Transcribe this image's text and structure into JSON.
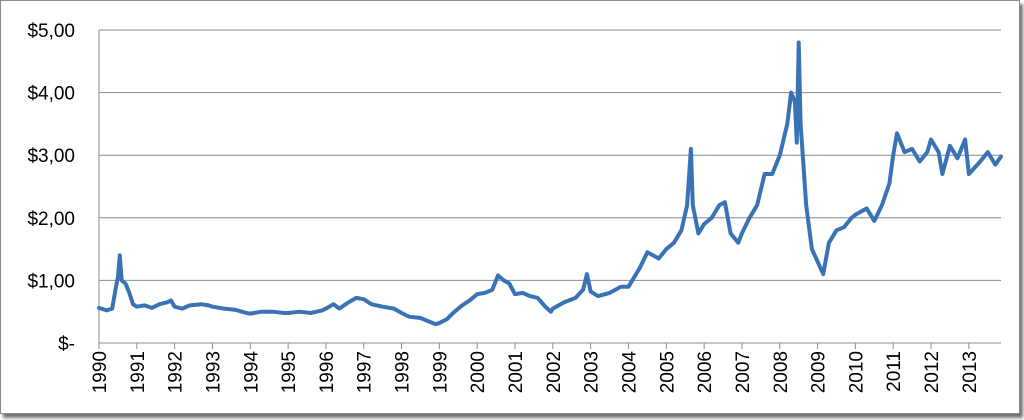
{
  "chart_data": {
    "type": "line",
    "title": "",
    "xlabel": "",
    "ylabel": "",
    "grid": true,
    "legend": "none",
    "line_color": "#3a73b5",
    "ylim": [
      0,
      5
    ],
    "xlim": [
      1990,
      2013.85
    ],
    "y_tick_labels": [
      "$-",
      "$1,00",
      "$2,00",
      "$3,00",
      "$4,00",
      "$5,00"
    ],
    "x_tick_labels": [
      "1990",
      "1991",
      "1992",
      "1993",
      "1994",
      "1995",
      "1996",
      "1997",
      "1998",
      "1999",
      "2000",
      "2001",
      "2002",
      "2003",
      "2004",
      "2005",
      "2006",
      "2007",
      "2008",
      "2009",
      "2010",
      "2011",
      "2012",
      "2013"
    ],
    "series": [
      {
        "points": [
          [
            1990.0,
            0.56
          ],
          [
            1990.2,
            0.52
          ],
          [
            1990.35,
            0.55
          ],
          [
            1990.45,
            0.9
          ],
          [
            1990.5,
            1.05
          ],
          [
            1990.55,
            1.4
          ],
          [
            1990.6,
            1.0
          ],
          [
            1990.7,
            0.95
          ],
          [
            1990.8,
            0.8
          ],
          [
            1990.9,
            0.62
          ],
          [
            1991.0,
            0.58
          ],
          [
            1991.2,
            0.6
          ],
          [
            1991.4,
            0.56
          ],
          [
            1991.6,
            0.62
          ],
          [
            1991.8,
            0.65
          ],
          [
            1991.9,
            0.68
          ],
          [
            1992.0,
            0.58
          ],
          [
            1992.2,
            0.55
          ],
          [
            1992.4,
            0.6
          ],
          [
            1992.7,
            0.62
          ],
          [
            1992.9,
            0.6
          ],
          [
            1993.0,
            0.58
          ],
          [
            1993.3,
            0.55
          ],
          [
            1993.6,
            0.53
          ],
          [
            1993.9,
            0.48
          ],
          [
            1994.0,
            0.47
          ],
          [
            1994.3,
            0.5
          ],
          [
            1994.6,
            0.5
          ],
          [
            1994.9,
            0.48
          ],
          [
            1995.0,
            0.48
          ],
          [
            1995.3,
            0.5
          ],
          [
            1995.6,
            0.48
          ],
          [
            1995.9,
            0.52
          ],
          [
            1996.0,
            0.55
          ],
          [
            1996.2,
            0.62
          ],
          [
            1996.35,
            0.55
          ],
          [
            1996.6,
            0.65
          ],
          [
            1996.8,
            0.72
          ],
          [
            1997.0,
            0.7
          ],
          [
            1997.2,
            0.62
          ],
          [
            1997.5,
            0.58
          ],
          [
            1997.8,
            0.55
          ],
          [
            1998.0,
            0.48
          ],
          [
            1998.2,
            0.42
          ],
          [
            1998.5,
            0.4
          ],
          [
            1998.7,
            0.35
          ],
          [
            1998.9,
            0.3
          ],
          [
            1999.0,
            0.32
          ],
          [
            1999.2,
            0.38
          ],
          [
            1999.4,
            0.5
          ],
          [
            1999.6,
            0.6
          ],
          [
            1999.8,
            0.68
          ],
          [
            2000.0,
            0.78
          ],
          [
            2000.2,
            0.8
          ],
          [
            2000.4,
            0.85
          ],
          [
            2000.55,
            1.08
          ],
          [
            2000.7,
            1.0
          ],
          [
            2000.85,
            0.95
          ],
          [
            2001.0,
            0.78
          ],
          [
            2001.2,
            0.8
          ],
          [
            2001.4,
            0.75
          ],
          [
            2001.6,
            0.72
          ],
          [
            2001.8,
            0.58
          ],
          [
            2001.95,
            0.5
          ],
          [
            2002.0,
            0.55
          ],
          [
            2002.3,
            0.65
          ],
          [
            2002.6,
            0.72
          ],
          [
            2002.8,
            0.85
          ],
          [
            2002.9,
            1.1
          ],
          [
            2003.0,
            0.82
          ],
          [
            2003.2,
            0.75
          ],
          [
            2003.5,
            0.8
          ],
          [
            2003.8,
            0.9
          ],
          [
            2004.0,
            0.9
          ],
          [
            2004.3,
            1.2
          ],
          [
            2004.5,
            1.45
          ],
          [
            2004.8,
            1.35
          ],
          [
            2005.0,
            1.5
          ],
          [
            2005.2,
            1.6
          ],
          [
            2005.4,
            1.8
          ],
          [
            2005.55,
            2.2
          ],
          [
            2005.65,
            3.1
          ],
          [
            2005.7,
            2.2
          ],
          [
            2005.85,
            1.75
          ],
          [
            2006.0,
            1.9
          ],
          [
            2006.2,
            2.0
          ],
          [
            2006.4,
            2.2
          ],
          [
            2006.55,
            2.25
          ],
          [
            2006.7,
            1.75
          ],
          [
            2006.9,
            1.6
          ],
          [
            2007.0,
            1.75
          ],
          [
            2007.2,
            2.0
          ],
          [
            2007.4,
            2.2
          ],
          [
            2007.6,
            2.7
          ],
          [
            2007.8,
            2.7
          ],
          [
            2008.0,
            3.0
          ],
          [
            2008.2,
            3.5
          ],
          [
            2008.3,
            4.0
          ],
          [
            2008.4,
            3.85
          ],
          [
            2008.45,
            3.2
          ],
          [
            2008.5,
            4.8
          ],
          [
            2008.55,
            3.5
          ],
          [
            2008.7,
            2.2
          ],
          [
            2008.85,
            1.5
          ],
          [
            2009.0,
            1.3
          ],
          [
            2009.15,
            1.1
          ],
          [
            2009.3,
            1.6
          ],
          [
            2009.5,
            1.8
          ],
          [
            2009.7,
            1.85
          ],
          [
            2009.9,
            2.0
          ],
          [
            2010.0,
            2.05
          ],
          [
            2010.3,
            2.15
          ],
          [
            2010.5,
            1.95
          ],
          [
            2010.7,
            2.2
          ],
          [
            2010.9,
            2.55
          ],
          [
            2011.0,
            3.0
          ],
          [
            2011.1,
            3.35
          ],
          [
            2011.3,
            3.05
          ],
          [
            2011.5,
            3.1
          ],
          [
            2011.7,
            2.9
          ],
          [
            2011.9,
            3.05
          ],
          [
            2012.0,
            3.25
          ],
          [
            2012.2,
            3.05
          ],
          [
            2012.3,
            2.7
          ],
          [
            2012.5,
            3.15
          ],
          [
            2012.7,
            2.95
          ],
          [
            2012.9,
            3.25
          ],
          [
            2013.0,
            2.7
          ],
          [
            2013.3,
            2.9
          ],
          [
            2013.5,
            3.05
          ],
          [
            2013.7,
            2.85
          ],
          [
            2013.85,
            2.98
          ]
        ]
      }
    ]
  }
}
